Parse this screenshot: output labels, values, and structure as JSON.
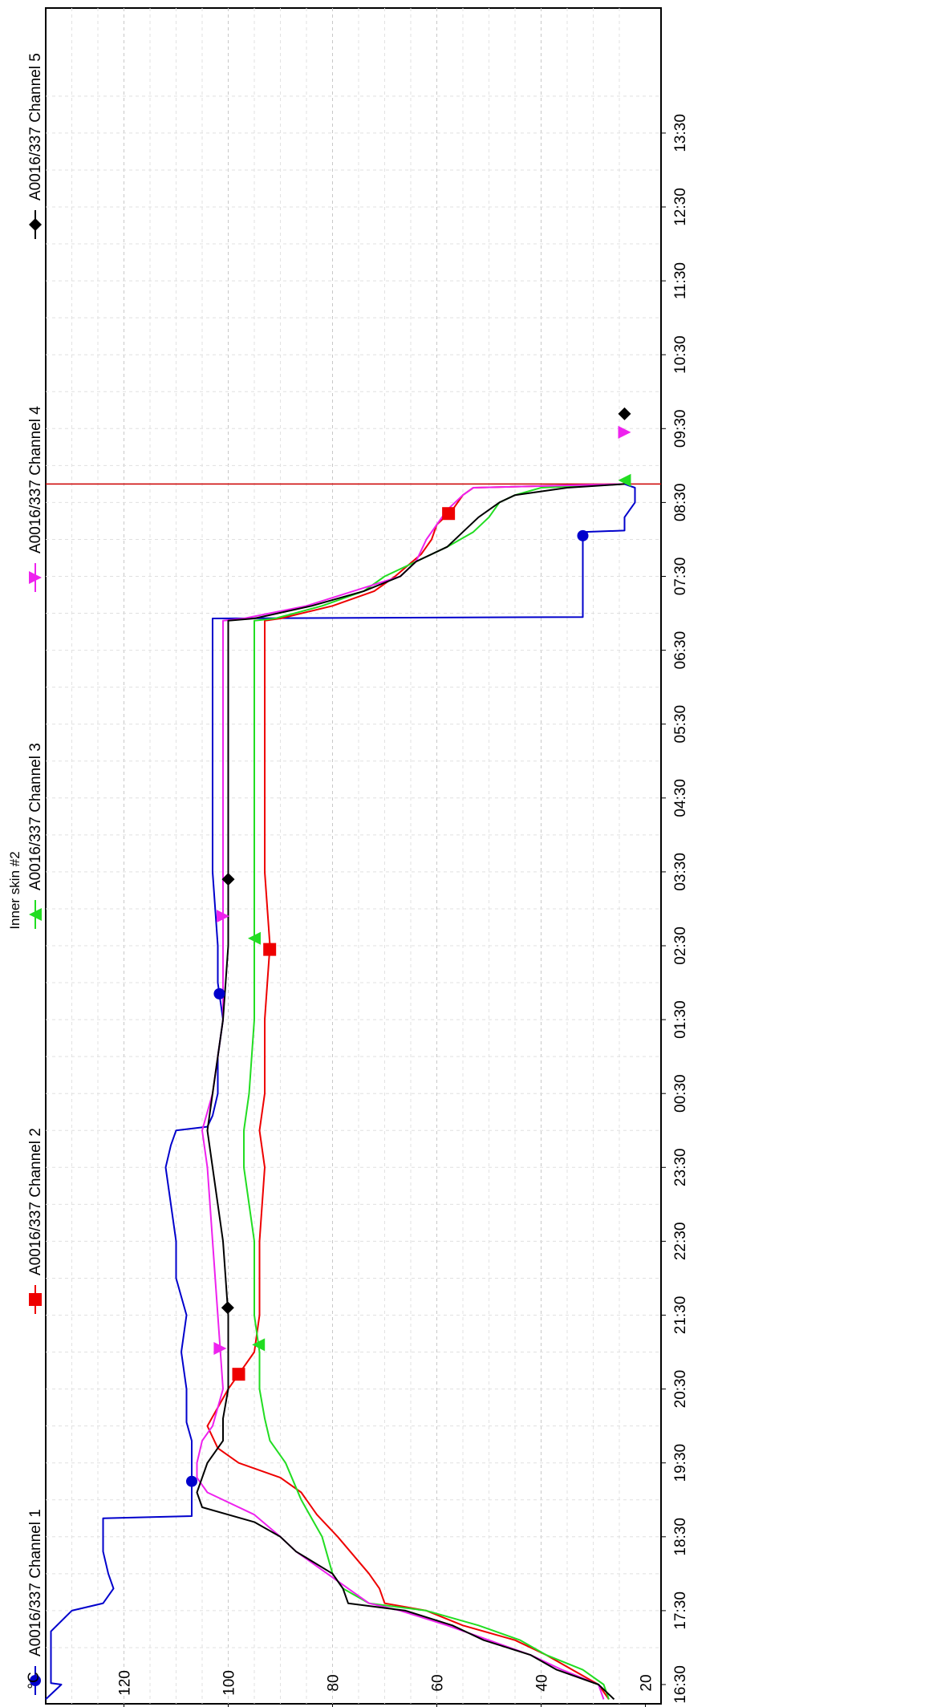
{
  "chart_data": {
    "type": "line",
    "title": "Inner skin #2",
    "ylabel": "°C",
    "xlabel": "",
    "orientation": "rotated-90-clockwise",
    "x_unit": "hours from 16:30",
    "ylim": [
      17,
      135
    ],
    "xlim": [
      0,
      21.45
    ],
    "grid": true,
    "legend_placement": "top",
    "y_ticks": [
      20,
      40,
      60,
      80,
      100,
      120
    ],
    "x_ticks": [
      {
        "x": 0,
        "label": "16:30"
      },
      {
        "x": 1,
        "label": "17:30"
      },
      {
        "x": 2,
        "label": "18:30"
      },
      {
        "x": 3,
        "label": "19:30"
      },
      {
        "x": 4,
        "label": "20:30"
      },
      {
        "x": 5,
        "label": "21:30"
      },
      {
        "x": 6,
        "label": "22:30"
      },
      {
        "x": 7,
        "label": "23:30"
      },
      {
        "x": 8,
        "label": "00:30"
      },
      {
        "x": 9,
        "label": "01:30"
      },
      {
        "x": 10,
        "label": "02:30"
      },
      {
        "x": 11,
        "label": "03:30"
      },
      {
        "x": 12,
        "label": "04:30"
      },
      {
        "x": 13,
        "label": "05:30"
      },
      {
        "x": 14,
        "label": "06:30"
      },
      {
        "x": 15,
        "label": "07:30"
      },
      {
        "x": 16,
        "label": "08:30"
      },
      {
        "x": 17,
        "label": "09:30"
      },
      {
        "x": 18,
        "label": "10:30"
      },
      {
        "x": 19,
        "label": "11:30"
      },
      {
        "x": 20,
        "label": "12:30"
      },
      {
        "x": 21,
        "label": "13:30"
      }
    ],
    "cursor_x": 16.25,
    "series": [
      {
        "name": "A0016/337 Channel 1",
        "color": "#0000cc",
        "marker": "circle",
        "marker_x": [
          2.75,
          9.35,
          15.55
        ],
        "x": [
          -0.2,
          0.0,
          0.02,
          0.7,
          0.72,
          1.0,
          1.1,
          1.3,
          1.5,
          1.8,
          2.0,
          2.25,
          2.28,
          2.5,
          2.75,
          3.0,
          3.3,
          3.55,
          4.0,
          4.5,
          5.0,
          5.5,
          6.0,
          6.5,
          7.0,
          7.3,
          7.5,
          7.55,
          7.7,
          8.0,
          8.5,
          9.0,
          9.5,
          10.0,
          11.0,
          12.0,
          13.0,
          14.0,
          14.43,
          14.45,
          14.5,
          15.0,
          15.5,
          15.6,
          15.62,
          15.8,
          16.0,
          16.2,
          16.25
        ],
        "y": [
          135,
          132,
          134,
          134,
          134,
          130,
          124,
          122,
          123,
          124,
          124,
          124,
          107,
          107,
          107,
          107,
          107,
          108,
          108,
          109,
          108,
          110,
          110,
          111,
          112,
          111,
          110,
          104,
          103,
          102,
          102,
          101,
          102,
          102,
          103,
          103,
          103,
          103,
          103,
          32,
          32,
          32,
          32,
          32,
          24,
          24,
          22,
          22,
          24
        ]
      },
      {
        "name": "A0016/337 Channel 2",
        "color": "#ee0000",
        "marker": "square",
        "marker_x": [
          4.2,
          9.95,
          15.85
        ],
        "x": [
          -0.2,
          0.0,
          0.2,
          0.4,
          0.6,
          0.8,
          1.0,
          1.1,
          1.3,
          1.5,
          2.0,
          2.3,
          2.6,
          2.8,
          3.0,
          3.2,
          3.5,
          4.0,
          4.2,
          4.5,
          5.0,
          6.0,
          7.0,
          7.5,
          8.0,
          9.0,
          10.0,
          11.0,
          12.0,
          13.0,
          14.0,
          14.4,
          14.43,
          14.6,
          14.8,
          15.0,
          15.3,
          15.5,
          15.7,
          15.9,
          16.1,
          16.2,
          16.25
        ],
        "y": [
          27,
          29,
          34,
          39,
          45,
          55,
          62,
          70,
          71,
          73,
          79,
          83,
          86,
          90,
          98,
          102,
          104,
          100,
          98,
          95,
          94,
          94,
          93,
          94,
          93,
          93,
          92,
          93,
          93,
          93,
          93,
          93,
          90,
          80,
          72,
          68,
          63,
          61,
          60,
          57,
          55,
          53,
          24
        ]
      },
      {
        "name": "A0016/337 Channel 3",
        "color": "#22dd22",
        "marker": "triangle",
        "marker_x": [
          4.6,
          10.1,
          16.3
        ],
        "x": [
          -0.2,
          0.0,
          0.2,
          0.4,
          0.6,
          0.8,
          1.0,
          1.1,
          1.3,
          1.5,
          2.0,
          2.5,
          3.0,
          3.3,
          3.6,
          4.0,
          4.5,
          5.0,
          6.0,
          7.0,
          7.5,
          8.0,
          9.0,
          10.0,
          11.0,
          12.0,
          13.0,
          14.0,
          14.4,
          14.43,
          14.6,
          14.8,
          15.0,
          15.2,
          15.4,
          15.6,
          15.8,
          16.0,
          16.1,
          16.2,
          16.25
        ],
        "y": [
          27,
          28,
          32,
          39,
          44,
          52,
          62,
          73,
          78,
          80,
          82,
          86,
          89,
          92,
          93,
          94,
          94,
          95,
          95,
          97,
          97,
          96,
          95,
          95,
          95,
          95,
          95,
          95,
          95,
          91,
          82,
          74,
          70,
          64,
          58,
          53,
          50,
          48,
          45,
          40,
          24
        ]
      },
      {
        "name": "A0016/337 Channel 4",
        "color": "#ee22ee",
        "marker": "triangle-down",
        "marker_x": [
          4.55,
          10.4,
          16.95
        ],
        "x": [
          -0.2,
          0.0,
          0.2,
          0.4,
          0.6,
          0.8,
          1.0,
          1.1,
          1.3,
          1.5,
          1.8,
          2.0,
          2.3,
          2.6,
          2.8,
          3.0,
          3.3,
          3.5,
          4.0,
          5.0,
          6.0,
          7.0,
          7.5,
          8.0,
          9.0,
          10.0,
          11.0,
          12.0,
          13.0,
          14.0,
          14.4,
          14.43,
          14.6,
          14.8,
          15.0,
          15.2,
          15.5,
          15.7,
          15.9,
          16.1,
          16.2,
          16.25
        ],
        "y": [
          28,
          29,
          36,
          42,
          50,
          58,
          67,
          73,
          77,
          81,
          87,
          90,
          95,
          104,
          106,
          106,
          105,
          103,
          101,
          102,
          103,
          104,
          105,
          103,
          101,
          101,
          101,
          101,
          101,
          101,
          101,
          97,
          85,
          76,
          67,
          64,
          62,
          60,
          58,
          55,
          53,
          24
        ]
      },
      {
        "name": "A0016/337 Channel 5",
        "color": "#000000",
        "marker": "diamond",
        "marker_x": [
          5.1,
          10.9,
          17.2
        ],
        "x": [
          -0.2,
          0.0,
          0.2,
          0.4,
          0.6,
          0.8,
          1.0,
          1.1,
          1.3,
          1.5,
          1.8,
          2.0,
          2.2,
          2.4,
          2.6,
          2.8,
          3.0,
          3.3,
          3.6,
          4.0,
          4.5,
          5.0,
          6.0,
          7.0,
          7.5,
          8.0,
          9.0,
          10.0,
          11.0,
          12.0,
          13.0,
          14.0,
          14.4,
          14.43,
          14.6,
          14.8,
          15.0,
          15.2,
          15.4,
          15.6,
          15.8,
          16.0,
          16.1,
          16.2,
          16.25
        ],
        "y": [
          26,
          29,
          37,
          42,
          51,
          57,
          66,
          77,
          78,
          80,
          87,
          90,
          95,
          105,
          106,
          105,
          104,
          101,
          101,
          100,
          100,
          100,
          101,
          103,
          104,
          103,
          101,
          100,
          100,
          100,
          100,
          100,
          100,
          95,
          84,
          74,
          67,
          64,
          58,
          55,
          52,
          48,
          45,
          35,
          24
        ]
      }
    ]
  }
}
